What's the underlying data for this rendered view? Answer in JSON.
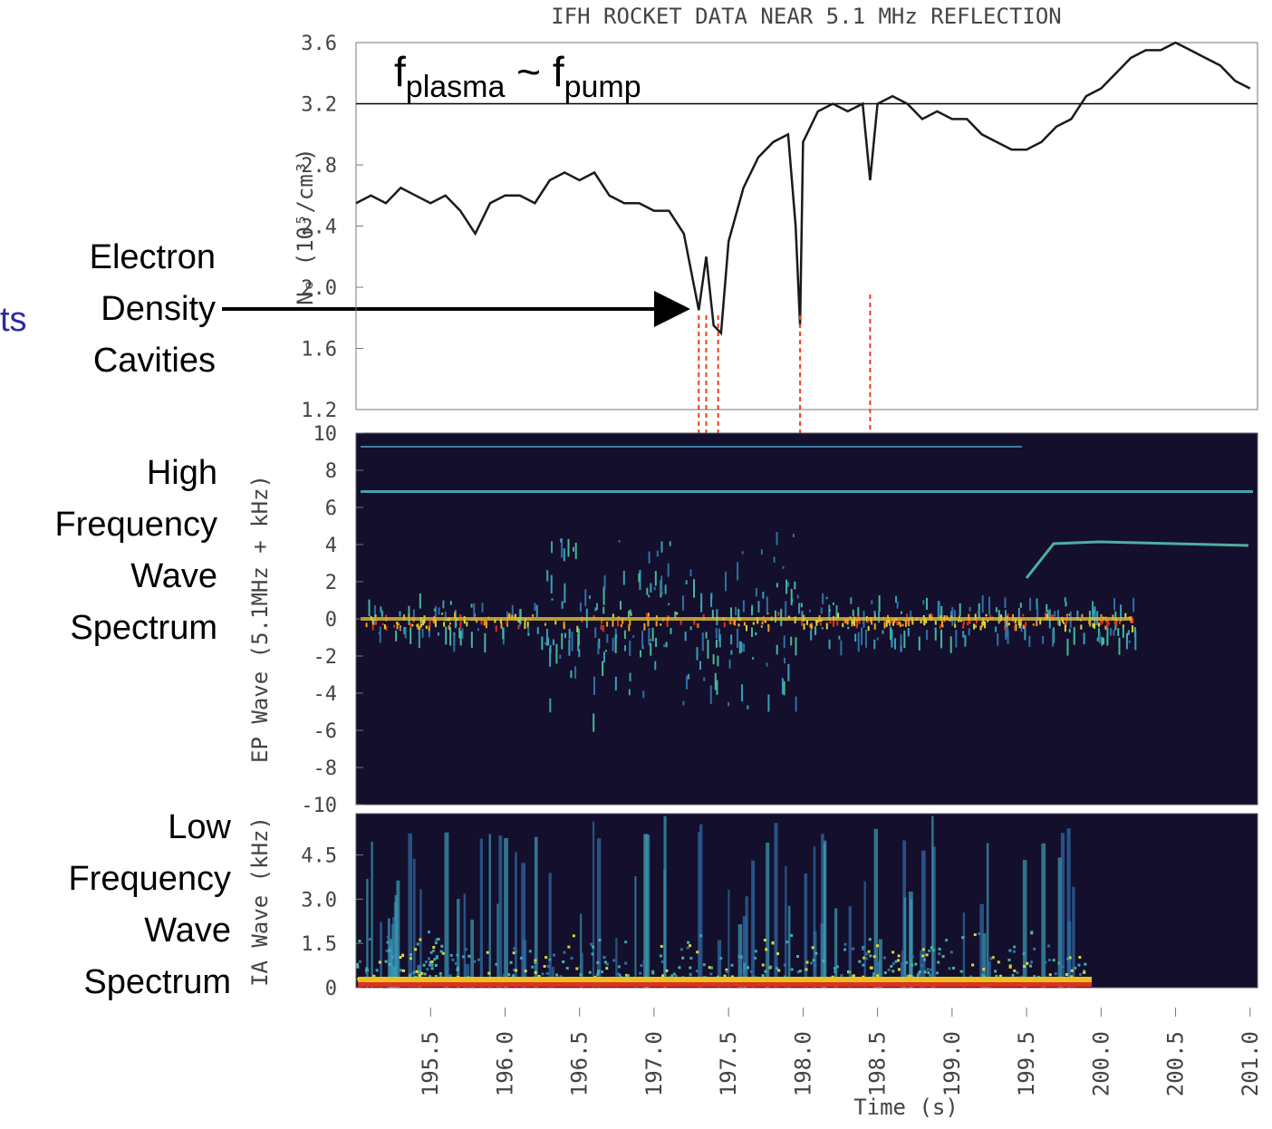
{
  "chart_data": [
    {
      "type": "line",
      "title": "IFH ROCKET DATA NEAR 5.1 MHz REFLECTION",
      "ylabel": "Nₑ (10⁵/cm³)",
      "x": [
        195.0,
        195.1,
        195.2,
        195.3,
        195.4,
        195.5,
        195.6,
        195.7,
        195.8,
        195.9,
        196.0,
        196.1,
        196.2,
        196.3,
        196.4,
        196.5,
        196.6,
        196.7,
        196.8,
        196.9,
        197.0,
        197.1,
        197.2,
        197.3,
        197.35,
        197.4,
        197.45,
        197.5,
        197.6,
        197.7,
        197.8,
        197.9,
        197.95,
        197.98,
        198.0,
        198.1,
        198.2,
        198.3,
        198.4,
        198.45,
        198.5,
        198.6,
        198.7,
        198.8,
        198.9,
        199.0,
        199.1,
        199.2,
        199.3,
        199.4,
        199.5,
        199.6,
        199.7,
        199.8,
        199.9,
        200.0,
        200.1,
        200.2,
        200.3,
        200.4,
        200.5,
        200.6,
        200.7,
        200.8,
        200.9,
        201.0
      ],
      "values": [
        2.55,
        2.6,
        2.55,
        2.65,
        2.6,
        2.55,
        2.6,
        2.5,
        2.35,
        2.55,
        2.6,
        2.6,
        2.55,
        2.7,
        2.75,
        2.7,
        2.75,
        2.6,
        2.55,
        2.55,
        2.5,
        2.5,
        2.35,
        1.85,
        2.2,
        1.75,
        1.7,
        2.3,
        2.65,
        2.85,
        2.95,
        3.0,
        2.4,
        1.75,
        2.95,
        3.15,
        3.2,
        3.15,
        3.2,
        2.7,
        3.2,
        3.25,
        3.2,
        3.1,
        3.15,
        3.1,
        3.1,
        3.0,
        2.95,
        2.9,
        2.9,
        2.95,
        3.05,
        3.1,
        3.25,
        3.3,
        3.4,
        3.5,
        3.55,
        3.55,
        3.6,
        3.55,
        3.5,
        3.45,
        3.35,
        3.3
      ],
      "color": "#1a1a1a",
      "xlim": [
        195.0,
        201.05
      ],
      "ylim": [
        1.2,
        3.6
      ],
      "yticks": [
        3.6,
        3.2,
        2.8,
        2.4,
        {
          "value": 2,
          "label": "2.0"
        },
        1.6,
        1.2
      ],
      "hline": 3.2,
      "annotation": [
        {
          "text": "f",
          "sub": "plasma"
        },
        {
          "text": " ~ f",
          "sub": "pump"
        }
      ],
      "markers": [
        197.3,
        197.35,
        197.43,
        197.98,
        198.45
      ],
      "marker_color": "#e8401c"
    },
    {
      "type": "spectrogram",
      "ylabel": "EP Wave (5.1MHz + kHz)",
      "ylim": [
        -10,
        10
      ],
      "yticks": [
        10,
        8,
        6,
        4,
        2,
        0,
        -2,
        -4,
        -6,
        -8,
        -10
      ]
    },
    {
      "type": "spectrogram",
      "ylabel": "IA Wave (kHz)",
      "xlabel": "Time (s)",
      "xlim": [
        195.0,
        201.05
      ],
      "ylim": [
        0,
        5.9
      ],
      "yticks": [
        4.5,
        {
          "value": 3,
          "label": "3.0"
        },
        1.5,
        0
      ],
      "xticks": [
        195.5,
        {
          "value": 196,
          "label": "196.0"
        },
        196.5,
        {
          "value": 197,
          "label": "197.0"
        },
        197.5,
        {
          "value": 198,
          "label": "198.0"
        },
        198.5,
        {
          "value": 199,
          "label": "199.0"
        },
        199.5,
        {
          "value": 200,
          "label": "200.0"
        },
        200.5,
        {
          "value": 201,
          "label": "201.0"
        }
      ]
    }
  ],
  "side_labels": {
    "fragment": "ts",
    "cavities": [
      "Electron",
      "Density",
      "Cavities"
    ],
    "high": [
      "High",
      "Frequency",
      "Wave",
      "Spectrum"
    ],
    "low": [
      "Low",
      "Frequency",
      "Wave",
      "Spectrum"
    ]
  }
}
